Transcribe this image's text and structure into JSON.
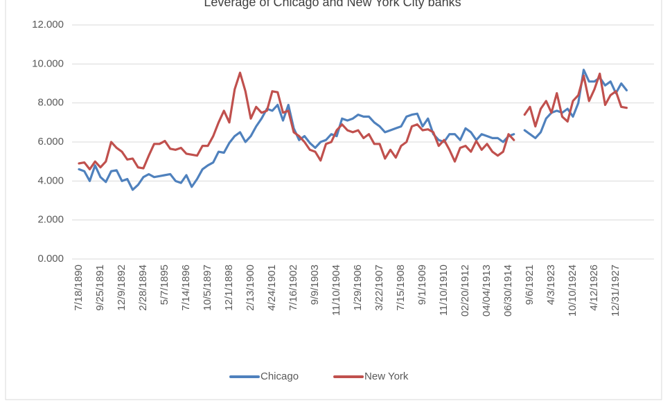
{
  "chart_data": {
    "type": "line",
    "title": "Leverage of Chicago and New York City banks",
    "categories": [
      "7/18/1890",
      null,
      null,
      null,
      "9/25/1891",
      null,
      null,
      null,
      "12/9/1892",
      null,
      null,
      null,
      "2/28/1894",
      null,
      null,
      null,
      "5/7/1895",
      null,
      null,
      null,
      "7/14/1896",
      null,
      null,
      null,
      "10/5/1897",
      null,
      null,
      null,
      "12/1/1898",
      null,
      null,
      null,
      "2/13/1900",
      null,
      null,
      null,
      "4/24/1901",
      null,
      null,
      null,
      "7/16/1902",
      null,
      null,
      null,
      "9/9/1903",
      null,
      null,
      null,
      "11/10/1904",
      null,
      null,
      null,
      "1/29/1906",
      null,
      null,
      null,
      "3/22/1907",
      null,
      null,
      null,
      "7/15/1908",
      null,
      null,
      null,
      "9/1/1909",
      null,
      null,
      null,
      "11/10/1910",
      null,
      null,
      null,
      "02/20/1912",
      null,
      null,
      null,
      "04/04/1913",
      null,
      null,
      null,
      "06/30/1914",
      null,
      null,
      null,
      "9/6/1921",
      null,
      null,
      null,
      "4/3/1923",
      null,
      null,
      null,
      "10/10/1924",
      null,
      null,
      null,
      "4/12/1926",
      null,
      null,
      null,
      "12/31/1927",
      null,
      null
    ],
    "series": [
      {
        "name": "Chicago",
        "color": "#4f81bd",
        "values": [
          4.6,
          4.5,
          4.0,
          4.8,
          4.2,
          3.95,
          4.5,
          4.55,
          4.0,
          4.1,
          3.55,
          3.8,
          4.2,
          4.35,
          4.2,
          4.25,
          4.3,
          4.35,
          4.0,
          3.9,
          4.3,
          3.7,
          4.1,
          4.6,
          4.8,
          4.95,
          5.5,
          5.45,
          5.95,
          6.3,
          6.5,
          6.0,
          6.3,
          6.8,
          7.2,
          7.7,
          7.6,
          7.9,
          7.1,
          7.9,
          6.7,
          6.1,
          6.3,
          5.95,
          5.7,
          6.0,
          6.1,
          6.4,
          6.3,
          7.2,
          7.1,
          7.2,
          7.4,
          7.3,
          7.3,
          7.0,
          6.8,
          6.5,
          6.6,
          6.7,
          6.8,
          7.3,
          7.4,
          7.45,
          6.8,
          7.2,
          6.4,
          6.1,
          6.0,
          6.4,
          6.4,
          6.1,
          6.7,
          6.5,
          6.1,
          6.4,
          6.3,
          6.2,
          6.2,
          6.0,
          6.3,
          6.4,
          null,
          6.6,
          6.4,
          6.2,
          6.5,
          7.2,
          7.5,
          7.6,
          7.5,
          7.7,
          7.3,
          8.0,
          9.7,
          9.1,
          9.1,
          9.3,
          8.9,
          9.1,
          8.5,
          9.0,
          8.65
        ]
      },
      {
        "name": "New York",
        "color": "#c0504d",
        "values": [
          4.9,
          4.95,
          4.6,
          5.0,
          4.7,
          5.0,
          6.0,
          5.7,
          5.5,
          5.1,
          5.15,
          4.7,
          4.65,
          5.3,
          5.9,
          5.9,
          6.05,
          5.65,
          5.6,
          5.7,
          5.4,
          5.35,
          5.3,
          5.8,
          5.8,
          6.3,
          7.0,
          7.6,
          7.0,
          8.7,
          9.55,
          8.6,
          7.2,
          7.8,
          7.5,
          7.6,
          8.6,
          8.55,
          7.5,
          7.6,
          6.5,
          6.3,
          6.0,
          5.6,
          5.5,
          5.05,
          5.9,
          6.0,
          6.6,
          6.9,
          6.6,
          6.5,
          6.6,
          6.2,
          6.4,
          5.9,
          5.9,
          5.15,
          5.6,
          5.2,
          5.8,
          6.0,
          6.8,
          6.9,
          6.6,
          6.65,
          6.5,
          5.8,
          6.1,
          5.6,
          5.0,
          5.7,
          5.8,
          5.5,
          6.05,
          5.6,
          5.9,
          5.5,
          5.3,
          5.5,
          6.4,
          6.1,
          null,
          7.4,
          7.8,
          6.8,
          7.7,
          8.1,
          7.5,
          8.5,
          7.3,
          7.05,
          8.1,
          8.4,
          9.4,
          8.1,
          8.7,
          9.5,
          7.9,
          8.4,
          8.6,
          7.8,
          7.75
        ]
      }
    ],
    "ylim": [
      0,
      12
    ],
    "yticks": [
      {
        "value": 0,
        "label": "0.000"
      },
      {
        "value": 2,
        "label": "2.000"
      },
      {
        "value": 4,
        "label": "4.000"
      },
      {
        "value": 6,
        "label": "6.000"
      },
      {
        "value": 8,
        "label": "8.000"
      },
      {
        "value": 10,
        "label": "10.000"
      },
      {
        "value": 12,
        "label": "12.000"
      }
    ],
    "grid": true,
    "legend": "bottom"
  }
}
